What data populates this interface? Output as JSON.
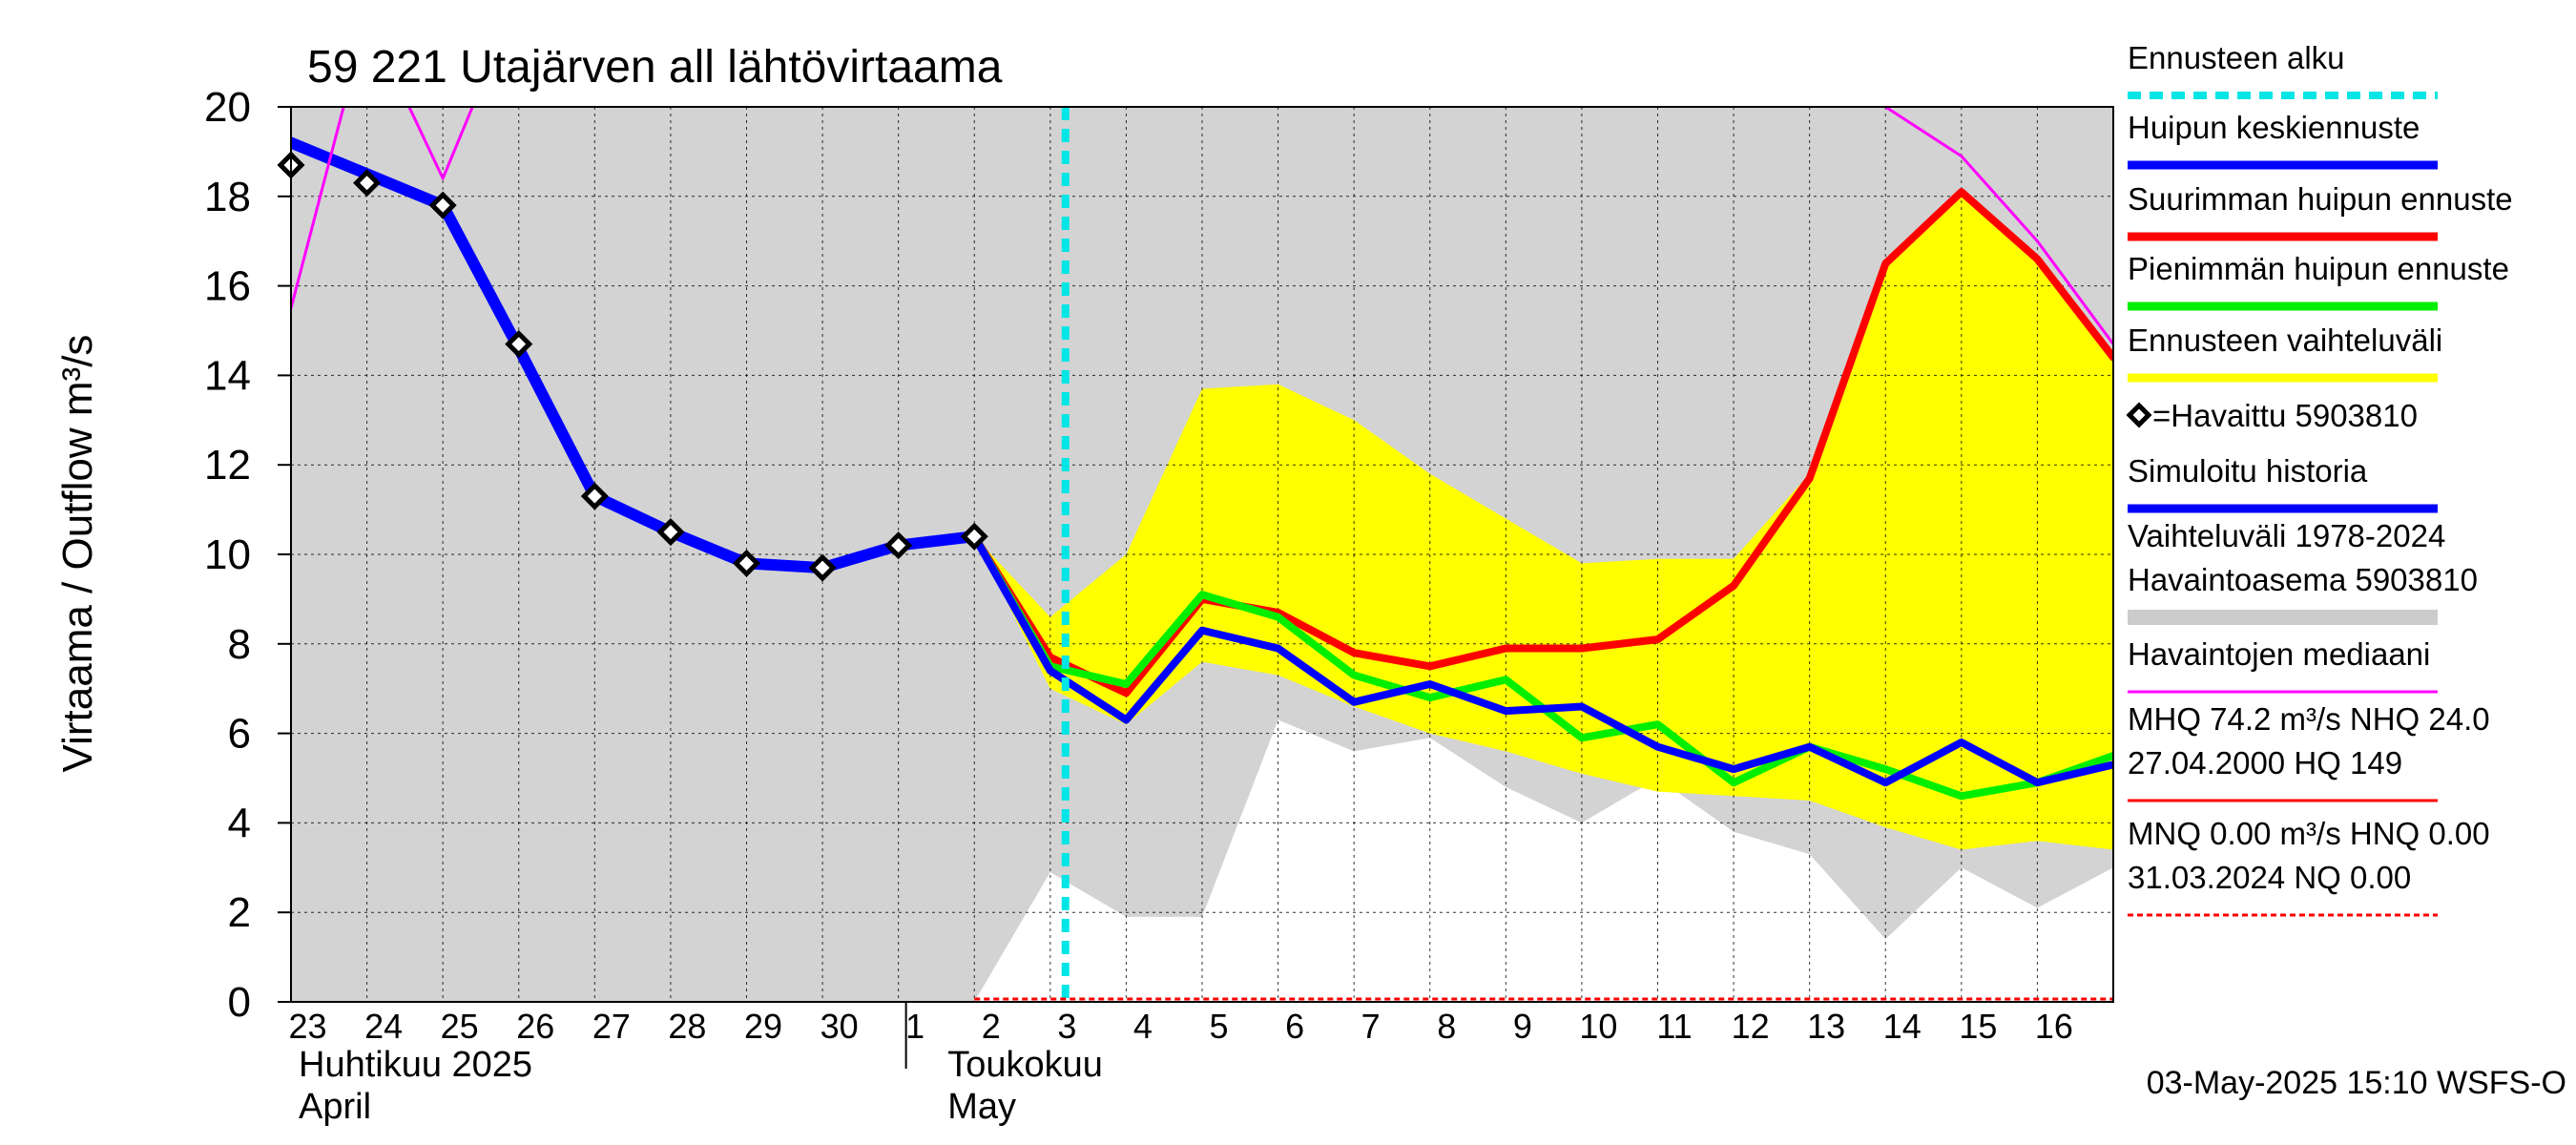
{
  "chart_data": {
    "type": "line",
    "title": "59 221 Utajärven all lähtövirtaama",
    "ylabel": "Virtaama / Outflow    m³/s",
    "ylim": [
      0,
      20
    ],
    "yticks": [
      0,
      2,
      4,
      6,
      8,
      10,
      12,
      14,
      16,
      18,
      20
    ],
    "x_dates": [
      "2025-04-23",
      "2025-04-24",
      "2025-04-25",
      "2025-04-26",
      "2025-04-27",
      "2025-04-28",
      "2025-04-29",
      "2025-04-30",
      "2025-05-01",
      "2025-05-02",
      "2025-05-03",
      "2025-05-04",
      "2025-05-05",
      "2025-05-06",
      "2025-05-07",
      "2025-05-08",
      "2025-05-09",
      "2025-05-10",
      "2025-05-11",
      "2025-05-12",
      "2025-05-13",
      "2025-05-14",
      "2025-05-15",
      "2025-05-16",
      "2025-05-17"
    ],
    "x_tick_labels": [
      "23",
      "24",
      "25",
      "26",
      "27",
      "28",
      "29",
      "30",
      "1",
      "2",
      "3",
      "4",
      "5",
      "6",
      "7",
      "8",
      "9",
      "10",
      "11",
      "12",
      "13",
      "14",
      "15",
      "16"
    ],
    "month_labels": [
      {
        "fi": "Huhtikuu  2025",
        "en": "April"
      },
      {
        "fi": "Toukokuu",
        "en": "May"
      }
    ],
    "forecast_start": 10.2,
    "historical_range_upper": [
      20,
      20,
      20,
      20,
      20,
      20,
      20,
      20,
      20,
      20,
      20,
      20,
      20,
      20,
      20,
      20,
      20,
      20,
      20,
      20,
      20,
      20,
      20,
      20,
      20
    ],
    "historical_range_lower": [
      0,
      0,
      0,
      0,
      0,
      0,
      0,
      0,
      0,
      0,
      2.9,
      1.9,
      1.9,
      6.3,
      5.6,
      5.9,
      4.8,
      4.0,
      5.0,
      3.8,
      3.3,
      1.4,
      3.0,
      2.1,
      3.0
    ],
    "forecast_range_upper": [
      null,
      null,
      null,
      null,
      null,
      null,
      null,
      null,
      null,
      10.4,
      8.6,
      10.0,
      13.7,
      13.8,
      13.0,
      11.8,
      10.8,
      9.8,
      9.9,
      9.9,
      11.8,
      16.5,
      18.1,
      16.6,
      14.4
    ],
    "forecast_range_lower": [
      null,
      null,
      null,
      null,
      null,
      null,
      null,
      null,
      null,
      10.4,
      7.0,
      6.2,
      7.6,
      7.3,
      6.6,
      6.0,
      5.6,
      5.1,
      4.7,
      4.6,
      4.5,
      3.9,
      3.4,
      3.6,
      3.4
    ],
    "series": [
      {
        "name": "Simuloitu historia",
        "color": "#0000ff",
        "width": 12,
        "values": [
          19.2,
          18.5,
          17.8,
          14.6,
          11.3,
          10.5,
          9.8,
          9.7,
          10.2,
          10.4,
          null,
          null,
          null,
          null,
          null,
          null,
          null,
          null,
          null,
          null,
          null,
          null,
          null,
          null,
          null
        ]
      },
      {
        "name": "Suurimman huipun ennuste",
        "color": "#ff0000",
        "width": 8,
        "values": [
          null,
          null,
          null,
          null,
          null,
          null,
          null,
          null,
          null,
          10.4,
          7.7,
          6.9,
          9.0,
          8.7,
          7.8,
          7.5,
          7.9,
          7.9,
          8.1,
          9.3,
          11.7,
          16.5,
          18.1,
          16.6,
          14.4
        ]
      },
      {
        "name": "Pienimmän huipun ennuste",
        "color": "#00ee00",
        "width": 8,
        "values": [
          null,
          null,
          null,
          null,
          null,
          null,
          null,
          null,
          null,
          10.4,
          7.5,
          7.1,
          9.1,
          8.6,
          7.3,
          6.8,
          7.2,
          5.9,
          6.2,
          4.9,
          5.7,
          5.2,
          4.6,
          4.9,
          5.5
        ]
      },
      {
        "name": "Huipun keskiennuste",
        "color": "#0000ff",
        "width": 8,
        "values": [
          null,
          null,
          null,
          null,
          null,
          null,
          null,
          null,
          null,
          10.4,
          7.4,
          6.3,
          8.3,
          7.9,
          6.7,
          7.1,
          6.5,
          6.6,
          5.7,
          5.2,
          5.7,
          4.9,
          5.8,
          4.9,
          5.3
        ]
      },
      {
        "name": "Havaintojen mediaani",
        "color": "#ff00ff",
        "width": 3,
        "values": [
          15.5,
          22.0,
          18.4,
          22.5,
          null,
          null,
          null,
          null,
          null,
          null,
          null,
          null,
          null,
          null,
          null,
          null,
          null,
          null,
          null,
          null,
          22.2,
          20.0,
          18.9,
          17.0,
          14.7
        ]
      }
    ],
    "observed": {
      "name": "Havaittu 5903810",
      "x_index": [
        0,
        1,
        2,
        3,
        4,
        5,
        6,
        7,
        8,
        9
      ],
      "values": [
        18.7,
        18.3,
        17.8,
        14.7,
        11.3,
        10.5,
        9.8,
        9.7,
        10.2,
        10.4
      ]
    },
    "legend": {
      "placement": "right",
      "items": [
        {
          "label": "Ennusteen alku",
          "kind": "dashed",
          "color": "#00e5e5"
        },
        {
          "label": "Huipun keskiennuste",
          "kind": "line",
          "color": "#0000ff"
        },
        {
          "label": "Suurimman huipun ennuste",
          "kind": "line",
          "color": "#ff0000"
        },
        {
          "label": "Pienimmän huipun ennuste",
          "kind": "line",
          "color": "#00ee00"
        },
        {
          "label": "Ennusteen vaihteluväli",
          "kind": "line",
          "color": "#ffff00"
        },
        {
          "label": "=Havaittu 5903810",
          "kind": "marker",
          "color": "#000000"
        },
        {
          "label": "Simuloitu historia",
          "kind": "line",
          "color": "#0000ff"
        },
        {
          "label": "Vaihteluväli 1978-2024",
          "label2": " Havaintoasema 5903810",
          "kind": "line",
          "color": "#cccccc"
        },
        {
          "label": "Havaintojen mediaani",
          "kind": "thin",
          "color": "#ff00ff"
        },
        {
          "label": "MHQ 74.2 m³/s NHQ 24.0",
          "label2": "27.04.2000 HQ  149",
          "kind": "thin",
          "color": "#ff0000"
        },
        {
          "label": "MNQ 0.00 m³/s HNQ 0.00",
          "label2": "31.03.2024 NQ 0.00",
          "kind": "dotted",
          "color": "#ff0000"
        }
      ]
    },
    "footer": "03-May-2025 15:10 WSFS-O",
    "colors": {
      "historical_range": "#d3d3d3",
      "forecast_range": "#ffff00",
      "forecast_start": "#00e5e5",
      "grid": "#000000"
    }
  }
}
